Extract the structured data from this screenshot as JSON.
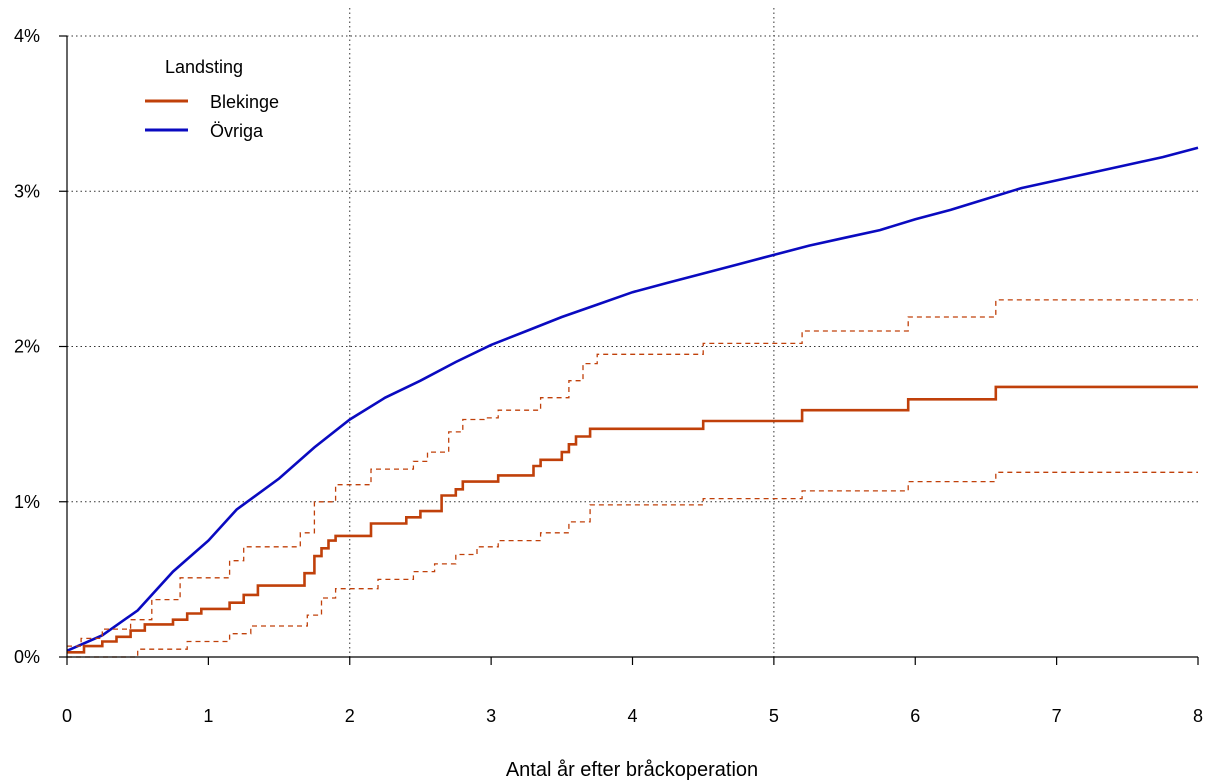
{
  "chart_data": {
    "type": "line",
    "xlabel": "Antal år efter bråckoperation",
    "ylabel": "",
    "xlim": [
      0,
      8
    ],
    "ylim": [
      0,
      4
    ],
    "x_ticks": [
      "0",
      "1",
      "2",
      "3",
      "4",
      "5",
      "6",
      "7",
      "8"
    ],
    "y_ticks": [
      "0%",
      "1%",
      "2%",
      "3%",
      "4%"
    ],
    "grid": "dotted at y=1,2,3,4% and x=2,5",
    "legend": {
      "title": "Landsting",
      "placement": "top-left",
      "items": [
        "Blekinge",
        "Övriga"
      ]
    },
    "colors": {
      "Blekinge": "#c0400a",
      "Övriga": "#0a0ac0"
    },
    "series": [
      {
        "name": "Övriga",
        "style": "solid",
        "points": [
          [
            0,
            0.04
          ],
          [
            0.25,
            0.14
          ],
          [
            0.5,
            0.3
          ],
          [
            0.75,
            0.55
          ],
          [
            1,
            0.75
          ],
          [
            1.2,
            0.95
          ],
          [
            1.5,
            1.15
          ],
          [
            1.75,
            1.35
          ],
          [
            2,
            1.53
          ],
          [
            2.25,
            1.67
          ],
          [
            2.5,
            1.78
          ],
          [
            2.75,
            1.9
          ],
          [
            3,
            2.01
          ],
          [
            3.25,
            2.1
          ],
          [
            3.5,
            2.19
          ],
          [
            3.75,
            2.27
          ],
          [
            4,
            2.35
          ],
          [
            4.25,
            2.41
          ],
          [
            4.5,
            2.47
          ],
          [
            4.75,
            2.53
          ],
          [
            5,
            2.59
          ],
          [
            5.25,
            2.65
          ],
          [
            5.5,
            2.7
          ],
          [
            5.75,
            2.75
          ],
          [
            6,
            2.82
          ],
          [
            6.25,
            2.88
          ],
          [
            6.5,
            2.95
          ],
          [
            6.75,
            3.02
          ],
          [
            7,
            3.07
          ],
          [
            7.25,
            3.12
          ],
          [
            7.5,
            3.17
          ],
          [
            7.75,
            3.22
          ],
          [
            8,
            3.28
          ]
        ]
      },
      {
        "name": "Blekinge",
        "style": "step",
        "points": [
          [
            0,
            0.03
          ],
          [
            0.12,
            0.07
          ],
          [
            0.25,
            0.1
          ],
          [
            0.35,
            0.13
          ],
          [
            0.45,
            0.17
          ],
          [
            0.55,
            0.21
          ],
          [
            0.75,
            0.24
          ],
          [
            0.85,
            0.28
          ],
          [
            0.95,
            0.31
          ],
          [
            1.15,
            0.35
          ],
          [
            1.25,
            0.4
          ],
          [
            1.35,
            0.46
          ],
          [
            1.68,
            0.54
          ],
          [
            1.75,
            0.65
          ],
          [
            1.8,
            0.7
          ],
          [
            1.85,
            0.75
          ],
          [
            1.9,
            0.78
          ],
          [
            2.15,
            0.86
          ],
          [
            2.4,
            0.9
          ],
          [
            2.5,
            0.94
          ],
          [
            2.65,
            1.04
          ],
          [
            2.75,
            1.08
          ],
          [
            2.8,
            1.13
          ],
          [
            3.05,
            1.17
          ],
          [
            3.3,
            1.23
          ],
          [
            3.35,
            1.27
          ],
          [
            3.5,
            1.32
          ],
          [
            3.55,
            1.37
          ],
          [
            3.6,
            1.42
          ],
          [
            3.7,
            1.47
          ],
          [
            4.5,
            1.52
          ],
          [
            5.2,
            1.59
          ],
          [
            5.95,
            1.66
          ],
          [
            6.57,
            1.74
          ],
          [
            8,
            1.74
          ]
        ]
      },
      {
        "name": "",
        "style": "dashed-step",
        "points": [
          [
            0,
            0.07
          ],
          [
            0.1,
            0.12
          ],
          [
            0.25,
            0.18
          ],
          [
            0.45,
            0.24
          ],
          [
            0.6,
            0.37
          ],
          [
            0.8,
            0.51
          ],
          [
            1.15,
            0.62
          ],
          [
            1.25,
            0.71
          ],
          [
            1.65,
            0.8
          ],
          [
            1.75,
            1.0
          ],
          [
            1.9,
            1.11
          ],
          [
            2.15,
            1.21
          ],
          [
            2.45,
            1.26
          ],
          [
            2.55,
            1.32
          ],
          [
            2.7,
            1.45
          ],
          [
            2.8,
            1.53
          ],
          [
            2.95,
            1.54
          ],
          [
            3.05,
            1.59
          ],
          [
            3.35,
            1.67
          ],
          [
            3.55,
            1.78
          ],
          [
            3.65,
            1.89
          ],
          [
            3.75,
            1.95
          ],
          [
            4.5,
            2.02
          ],
          [
            5.2,
            2.1
          ],
          [
            5.95,
            2.19
          ],
          [
            6.57,
            2.3
          ],
          [
            8,
            2.3
          ]
        ]
      },
      {
        "name": "",
        "style": "dashed-step",
        "points": [
          [
            0,
            0.0
          ],
          [
            0.5,
            0.05
          ],
          [
            0.85,
            0.1
          ],
          [
            1.15,
            0.15
          ],
          [
            1.3,
            0.2
          ],
          [
            1.7,
            0.27
          ],
          [
            1.8,
            0.38
          ],
          [
            1.9,
            0.44
          ],
          [
            2.2,
            0.5
          ],
          [
            2.45,
            0.55
          ],
          [
            2.6,
            0.6
          ],
          [
            2.75,
            0.66
          ],
          [
            2.9,
            0.71
          ],
          [
            3.05,
            0.75
          ],
          [
            3.35,
            0.8
          ],
          [
            3.55,
            0.87
          ],
          [
            3.7,
            0.98
          ],
          [
            4.5,
            1.02
          ],
          [
            5.2,
            1.07
          ],
          [
            5.95,
            1.13
          ],
          [
            6.57,
            1.19
          ],
          [
            8,
            1.19
          ]
        ]
      }
    ]
  }
}
